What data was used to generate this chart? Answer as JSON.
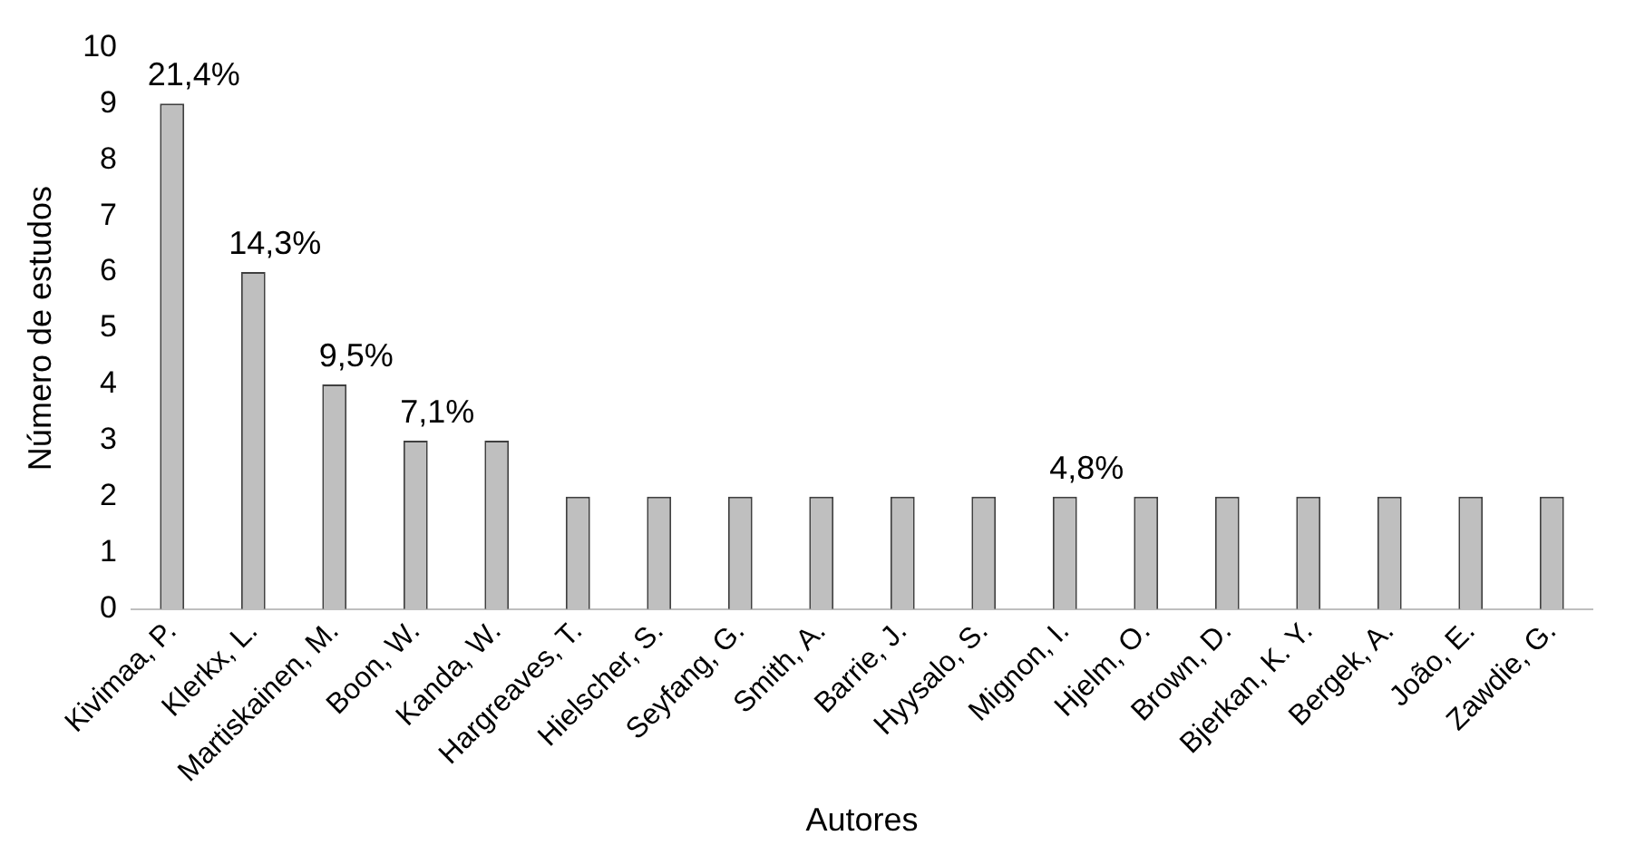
{
  "chart_data": {
    "type": "bar",
    "xlabel": "Autores",
    "ylabel": "Número de estudos",
    "categories": [
      "Kivimaa, P.",
      "Klerkx, L.",
      "Martiskainen, M.",
      "Boon, W.",
      "Kanda, W.",
      "Hargreaves, T.",
      "Hielscher, S.",
      "Seyfang, G.",
      "Smith, A.",
      "Barrie, J.",
      "Hyysalo, S.",
      "Mignon, I.",
      "Hjelm, O.",
      "Brown, D.",
      "Bjerkan, K. Y.",
      "Bergek, A.",
      "João, E.",
      "Zawdie, G."
    ],
    "values": [
      9,
      6,
      4,
      3,
      3,
      2,
      2,
      2,
      2,
      2,
      2,
      2,
      2,
      2,
      2,
      2,
      2,
      2
    ],
    "color": "#bfbfbf",
    "ylim": [
      0,
      10
    ],
    "yticks": [
      0,
      1,
      2,
      3,
      4,
      5,
      6,
      7,
      8,
      9,
      10
    ],
    "grid": false,
    "legend": false,
    "annotations": [
      {
        "text": "21,4%",
        "x": "Kivimaa, P.",
        "y": 9
      },
      {
        "text": "14,3%",
        "x": "Klerkx, L.",
        "y": 6
      },
      {
        "text": "9,5%",
        "x": "Martiskainen, M.",
        "y": 4
      },
      {
        "text": "7,1%",
        "x": "Boon, W.",
        "y": 3
      },
      {
        "text": "4,8%",
        "x": "Mignon, I.",
        "y": 2
      }
    ]
  }
}
